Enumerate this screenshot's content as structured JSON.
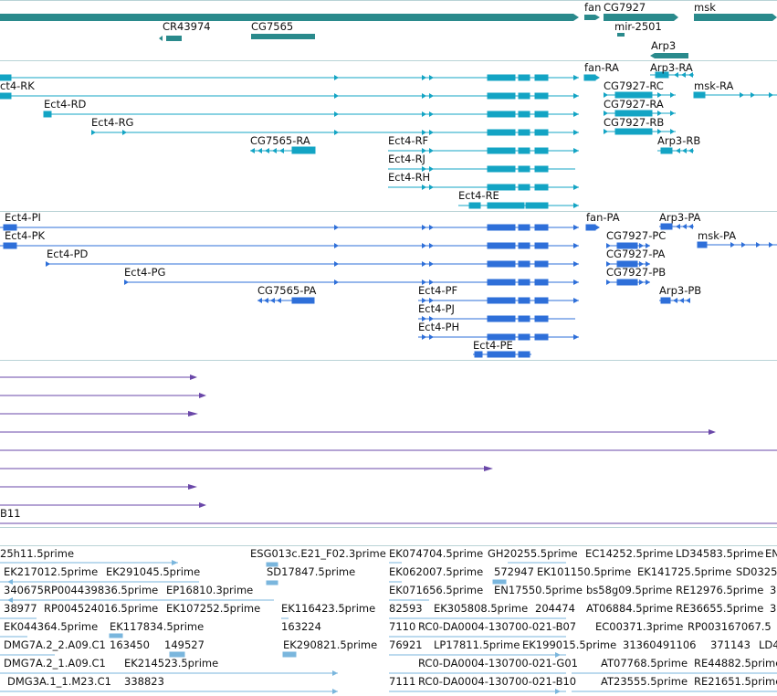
{
  "colors": {
    "gene": "#2a8a8c",
    "transcript": "#13a4c4",
    "protein": "#2e6fd9",
    "cdna": "#6a47a8",
    "est": "#7ab6dd",
    "separator": "#b9d3d6"
  },
  "tracks": {
    "genes": {
      "labels": [
        "fan",
        "CG7927",
        "msk",
        "CR43974",
        "CG7565",
        "mir-2501",
        "Arp3"
      ]
    },
    "transcripts": {
      "labels": [
        "fan-RA",
        "Arp3-RA",
        "ct4-RK",
        "CG7927-RC",
        "msk-RA",
        "Ect4-RD",
        "CG7927-RA",
        "Ect4-RG",
        "CG7927-RB",
        "CG7565-RA",
        "Ect4-RF",
        "Arp3-RB",
        "Ect4-RJ",
        "Ect4-RH",
        "Ect4-RE"
      ]
    },
    "proteins": {
      "labels": [
        "Ect4-PI",
        "fan-PA",
        "Arp3-PA",
        "Ect4-PK",
        "CG7927-PC",
        "msk-PA",
        "Ect4-PD",
        "CG7927-PA",
        "Ect4-PG",
        "CG7927-PB",
        "CG7565-PA",
        "Ect4-PF",
        "Arp3-PB",
        "Ect4-PJ",
        "Ect4-PH",
        "Ect4-PE"
      ]
    },
    "cdna": {
      "labels": [
        "B11"
      ]
    },
    "est": {
      "row1": [
        "25h11.5prime",
        "ESG013c.E21_F02.3prime",
        "EK074704.5prime",
        "GH20255.5prime",
        "EC14252.5prime",
        "LD34583.5prime",
        "EN"
      ],
      "row2": [
        "EK217012.5prime",
        "EK291045.5prime",
        "SD17847.5prime",
        "EK062007.5prime",
        "572947",
        "EK101150.5prime",
        "EK141725.5prime",
        "SD0325"
      ],
      "row3": [
        "340675",
        "RP004439836.5prime",
        "EP16810.3prime",
        "EK071656.5prime",
        "EN17550.5prime",
        "bs58g09.5prime",
        "RE12976.5prime",
        "3"
      ],
      "row4": [
        "38977",
        "RP004524016.5prime",
        "EK107252.5prime",
        "EK116423.5prime",
        "82593",
        "EK305808.5prime",
        "204474",
        "AT06884.5prime",
        "RE36655.5prime",
        "3"
      ],
      "row5": [
        "EK044364.5prime",
        "EK117834.5prime",
        "163224",
        "7110",
        "RC0-DA0004-130700-021-B07",
        "EC00371.3prime",
        "RP003167067.5"
      ],
      "row6": [
        "DMG7A.2_2.A09.C1",
        "163450",
        "149527",
        "EK290821.5prime",
        "76921",
        "LP17811.5prime",
        "EK199015.5prime",
        "31360491106",
        "371143",
        "LD4"
      ],
      "row7": [
        "DMG7A.2_1.A09.C1",
        "EK214523.5prime",
        "RC0-DA0004-130700-021-G01",
        "AT07768.5prime",
        "RE44882.5prime"
      ],
      "row8": [
        "DMG3A.1_1.M23.C1",
        "338823",
        "7111",
        "RC0-DA0004-130700-021-B10",
        "AT23555.5prime",
        "RE21651.5prime"
      ]
    }
  }
}
